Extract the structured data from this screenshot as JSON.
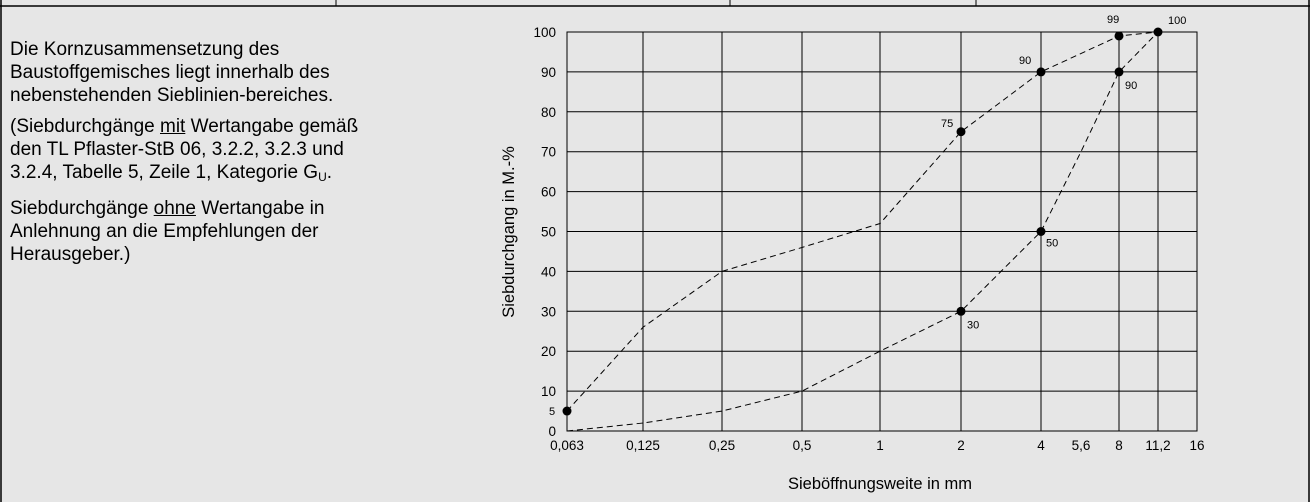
{
  "description": {
    "p1": "Die Kornzusammensetzung des Baustoffgemisches liegt innerhalb des nebenstehenden Sieblinien-bereiches.",
    "p2_a": "(Siebdurchgänge ",
    "p2_u": "mit",
    "p2_b": " Wertangabe gemäß den TL Pflaster-StB 06, 3.2.2, 3.2.3 und 3.2.4, Tabelle 5, Zeile 1, Kategorie G",
    "p2_sub": "U",
    "p2_c": ".",
    "p3_a": "Siebdurchgänge ",
    "p3_u": "ohne",
    "p3_b": " Wertangabe in Anlehnung an die Empfehlungen der Herausgeber.)"
  },
  "chart_data": {
    "type": "line",
    "xlabel": "Sieböffnungsweite in mm",
    "ylabel": "Siebdurchgang in M.-%",
    "x_ticks": [
      "0,063",
      "0,125",
      "0,25",
      "0,5",
      "1",
      "2",
      "4",
      "5,6",
      "8",
      "11,2",
      "16"
    ],
    "y_ticks": [
      "0",
      "10",
      "20",
      "30",
      "40",
      "50",
      "60",
      "70",
      "80",
      "90",
      "100"
    ],
    "ylim": [
      0,
      100
    ],
    "grid": true,
    "series": [
      {
        "style": "dashed",
        "points": [
          {
            "x": "0,063",
            "y": 5
          },
          {
            "x": "0,125",
            "y": 26
          },
          {
            "x": "0,25",
            "y": 40
          },
          {
            "x": "0,5",
            "y": 46
          },
          {
            "x": "1",
            "y": 52
          },
          {
            "x": "2",
            "y": 75
          },
          {
            "x": "4",
            "y": 90
          },
          {
            "x": "8",
            "y": 99
          },
          {
            "x": "11,2",
            "y": 100
          }
        ]
      },
      {
        "style": "dashed",
        "points": [
          {
            "x": "0,063",
            "y": 0
          },
          {
            "x": "0,125",
            "y": 2
          },
          {
            "x": "0,25",
            "y": 5
          },
          {
            "x": "0,5",
            "y": 10
          },
          {
            "x": "1",
            "y": 20
          },
          {
            "x": "2",
            "y": 30
          },
          {
            "x": "4",
            "y": 50
          },
          {
            "x": "5,6",
            "y": 70
          },
          {
            "x": "8",
            "y": 90
          },
          {
            "x": "11,2",
            "y": 100
          }
        ]
      }
    ],
    "marked_points": [
      {
        "x": "0,063",
        "y": 5,
        "label": "5"
      },
      {
        "x": "2",
        "y": 75,
        "label": "75"
      },
      {
        "x": "4",
        "y": 90,
        "label": "90"
      },
      {
        "x": "8",
        "y": 99,
        "label": "99"
      },
      {
        "x": "11,2",
        "y": 100,
        "label": "100"
      },
      {
        "x": "8",
        "y": 90,
        "label": "90"
      },
      {
        "x": "4",
        "y": 50,
        "label": "50"
      },
      {
        "x": "2",
        "y": 30,
        "label": "30"
      }
    ]
  }
}
